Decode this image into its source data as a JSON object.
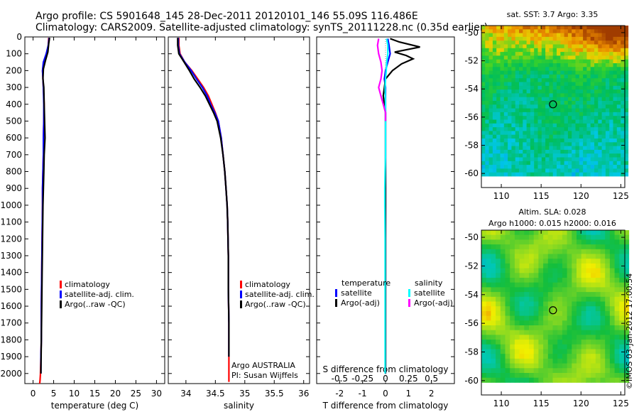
{
  "header": {
    "line1": "Argo profile: CS 5901648_145 28-Dec-2011 20120101_146 55.09S 116.486E",
    "line2": "Climatology: CARS2009. Satellite-adjusted climatology: synTS_20111228.nc (0.35d earlier)"
  },
  "credit": "©IMOS 03-Jan-2012 17:00:54",
  "colors": {
    "climatology": "#ff0000",
    "satellite": "#0000ff",
    "argo": "#000000",
    "sat_s": "#00ffff",
    "argo_s": "#ff00ff"
  },
  "chart_data": [
    {
      "type": "line",
      "name": "temperature",
      "xlabel": "temperature (deg C)",
      "xticks": [
        0,
        5,
        10,
        15,
        20,
        25,
        30
      ],
      "xlim": [
        -2,
        32
      ],
      "yticks": [
        0,
        100,
        200,
        300,
        400,
        500,
        600,
        700,
        800,
        900,
        1000,
        1100,
        1200,
        1300,
        1400,
        1500,
        1600,
        1700,
        1800,
        1900,
        2000
      ],
      "ylim": [
        2060,
        0
      ],
      "legend": [
        "climatology",
        "satellite-adj. clim.",
        "Argo(..raw -QC)"
      ],
      "series": [
        {
          "name": "climatology",
          "color": "#ff0000",
          "x": [
            3.8,
            3.7,
            3.4,
            2.6,
            2.3,
            2.4,
            2.5,
            2.7,
            2.6,
            2.5,
            2.5,
            2.4,
            2.3,
            2.3,
            2.2,
            2.1,
            2.0,
            2.0,
            1.9,
            1.8,
            1.7,
            1.6
          ],
          "y": [
            5,
            50,
            100,
            150,
            200,
            250,
            300,
            400,
            500,
            600,
            700,
            800,
            900,
            1000,
            1200,
            1400,
            1600,
            1800,
            1900,
            2000,
            2040,
            2060
          ]
        },
        {
          "name": "satellite-adj. clim.",
          "color": "#0000ff",
          "x": [
            3.9,
            3.7,
            3.2,
            2.5,
            2.3,
            2.4,
            2.5,
            2.6,
            2.6,
            2.5,
            2.5,
            2.4,
            2.3,
            2.3,
            2.2,
            2.1,
            2.0,
            2.0,
            1.9,
            1.9
          ],
          "y": [
            5,
            50,
            100,
            150,
            200,
            250,
            300,
            400,
            500,
            600,
            700,
            800,
            900,
            1000,
            1200,
            1400,
            1600,
            1800,
            1900,
            2000
          ]
        },
        {
          "name": "Argo(..raw -QC)",
          "color": "#000000",
          "x": [
            4.0,
            3.8,
            3.6,
            3.0,
            2.5,
            2.4,
            2.6,
            2.7,
            2.8,
            2.9,
            2.7,
            2.6,
            2.5,
            2.4,
            2.3,
            2.2,
            2.1,
            2.0,
            1.95,
            1.9
          ],
          "y": [
            5,
            40,
            90,
            140,
            190,
            250,
            300,
            400,
            500,
            600,
            700,
            800,
            900,
            1000,
            1200,
            1400,
            1600,
            1800,
            1900,
            2000
          ]
        }
      ]
    },
    {
      "type": "line",
      "name": "salinity",
      "xlabel": "salinity",
      "xticks": [
        34,
        34.5,
        35,
        35.5,
        36
      ],
      "xlim": [
        33.7,
        36.1
      ],
      "ylim": [
        2060,
        0
      ],
      "legend": [
        "climatology",
        "satellite-adj. clim.",
        "Argo(..raw -QC)"
      ],
      "annotation": [
        "Argo AUSTRALIA",
        "PI: Susan Wijffels"
      ],
      "series": [
        {
          "name": "climatology",
          "color": "#ff0000",
          "x": [
            33.88,
            33.88,
            33.9,
            33.98,
            34.1,
            34.2,
            34.3,
            34.38,
            34.44,
            34.5,
            34.55,
            34.6,
            34.63,
            34.66,
            34.68,
            34.7,
            34.71,
            34.72,
            34.72,
            34.73,
            34.73,
            34.73
          ],
          "y": [
            5,
            50,
            100,
            150,
            200,
            250,
            300,
            350,
            400,
            450,
            500,
            600,
            700,
            800,
            900,
            1000,
            1100,
            1300,
            1500,
            1700,
            1900,
            2050
          ]
        },
        {
          "name": "satellite-adj. clim.",
          "color": "#0000ff",
          "x": [
            33.87,
            33.87,
            33.89,
            33.98,
            34.09,
            34.18,
            34.28,
            34.36,
            34.42,
            34.49,
            34.55,
            34.6,
            34.63,
            34.66,
            34.68,
            34.7,
            34.71,
            34.72,
            34.72,
            34.73,
            34.73
          ],
          "y": [
            5,
            50,
            100,
            150,
            200,
            250,
            300,
            350,
            400,
            450,
            500,
            600,
            700,
            800,
            900,
            1000,
            1100,
            1300,
            1500,
            1700,
            1900
          ]
        },
        {
          "name": "Argo(..raw -QC)",
          "color": "#000000",
          "x": [
            33.86,
            33.86,
            33.88,
            33.97,
            34.06,
            34.14,
            34.24,
            34.33,
            34.4,
            34.47,
            34.53,
            34.59,
            34.63,
            34.66,
            34.68,
            34.7,
            34.71,
            34.72,
            34.72,
            34.73,
            34.73
          ],
          "y": [
            5,
            50,
            100,
            150,
            200,
            250,
            300,
            350,
            400,
            450,
            500,
            600,
            700,
            800,
            900,
            1000,
            1100,
            1300,
            1500,
            1700,
            1900
          ]
        }
      ]
    },
    {
      "type": "line",
      "name": "difference",
      "xlabel": "T difference from climatology",
      "xlabel_top": "S difference from climatology",
      "xticks": [
        -2,
        -1,
        0,
        1,
        2
      ],
      "xticks_s": [
        "-0.5",
        "-0.25",
        "0",
        "0.25",
        "0.5"
      ],
      "xlim": [
        -3,
        3
      ],
      "ylim": [
        2060,
        0
      ],
      "legend_t": {
        "title": "temperature",
        "items": [
          "satellite",
          "Argo(-adj)"
        ]
      },
      "legend_s": {
        "title": "salinity",
        "items": [
          "satellite",
          "Argo(-adj)"
        ]
      },
      "series": [
        {
          "name": "T satellite",
          "color": "#0000ff",
          "x": [
            0.1,
            0.15,
            0.2,
            0.1,
            0.0,
            -0.05,
            0.0,
            0.0,
            0.0,
            0.0,
            0.0,
            0.0,
            0.0,
            0.0,
            0.0,
            0.0,
            0.0,
            0.0,
            0.0
          ],
          "y": [
            10,
            50,
            100,
            150,
            200,
            250,
            300,
            400,
            500,
            600,
            700,
            800,
            900,
            1000,
            1200,
            1400,
            1600,
            1800,
            2000
          ]
        },
        {
          "name": "T Argo(-adj)",
          "color": "#000000",
          "x": [
            0.2,
            0.6,
            1.5,
            0.4,
            0.9,
            1.2,
            0.7,
            0.3,
            0.0,
            -0.05,
            -0.1,
            -0.05,
            0.0,
            0.0,
            0.0,
            0.0,
            0.0,
            0.0,
            0.0,
            0.0,
            0.0
          ],
          "y": [
            10,
            30,
            60,
            90,
            110,
            130,
            160,
            200,
            250,
            300,
            350,
            400,
            450,
            500,
            600,
            700,
            900,
            1100,
            1400,
            1700,
            2000
          ]
        },
        {
          "name": "S satellite",
          "color": "#00ffff",
          "x": [
            0.05,
            0.1,
            0.1,
            0.05,
            0.03,
            0.0,
            -0.02,
            0.0,
            0.0,
            0.0,
            0.0,
            -0.02,
            -0.03,
            -0.03,
            -0.02,
            -0.02,
            -0.02,
            -0.02,
            -0.02
          ],
          "y": [
            10,
            50,
            100,
            150,
            200,
            250,
            300,
            400,
            500,
            600,
            700,
            800,
            900,
            1000,
            1200,
            1400,
            1600,
            1800,
            2000
          ]
        },
        {
          "name": "S Argo(-adj)",
          "color": "#ff00ff",
          "x": [
            -0.3,
            -0.35,
            -0.3,
            -0.2,
            -0.15,
            -0.2,
            -0.3,
            -0.2,
            -0.1,
            0.0,
            0.0
          ],
          "y": [
            10,
            50,
            100,
            150,
            200,
            250,
            300,
            350,
            400,
            450,
            500
          ]
        }
      ]
    },
    {
      "type": "heatmap",
      "name": "sst-map",
      "title": "sat. SST: 3.7 Argo: 3.35",
      "xticks": [
        110,
        115,
        120,
        125
      ],
      "yticks": [
        -50,
        -52,
        -54,
        -56,
        -58,
        -60
      ],
      "xlim": [
        107.5,
        125.5
      ],
      "ylim": [
        -61,
        -49.5
      ],
      "marker": {
        "lon": 116.486,
        "lat": -55.09
      }
    },
    {
      "type": "heatmap",
      "name": "sla-map",
      "title": "Altim. SLA: 0.028",
      "subtitle": "Argo h1000: 0.015 h2000: 0.016",
      "xticks": [
        110,
        115,
        120,
        125
      ],
      "yticks": [
        -50,
        -52,
        -54,
        -56,
        -58,
        -60
      ],
      "xlim": [
        107.5,
        125.5
      ],
      "ylim": [
        -61,
        -49.5
      ],
      "marker": {
        "lon": 116.486,
        "lat": -55.09
      }
    }
  ]
}
